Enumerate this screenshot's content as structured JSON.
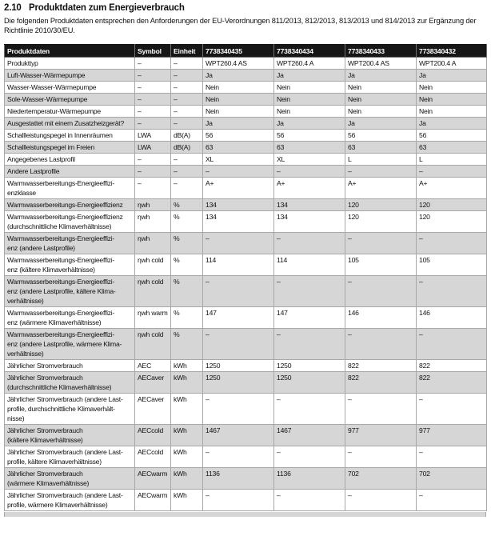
{
  "document": {
    "section_number": "2.10",
    "section_title": "Produktdaten zum Energieverbrauch",
    "intro": "Die folgenden Produktdaten entsprechen den Anforderungen der EU-Verordnungen 811/2013, 812/2013, 813/2013 und 814/2013 zur Ergänzung der Richtlinie 2010/30/EU."
  },
  "colors": {
    "header_bg": "#161616",
    "header_text": "#ffffff",
    "row_alt_bg": "#d6d6d6",
    "grid_line": "#a8a8a8",
    "text": "#111111"
  },
  "table": {
    "headers": [
      "Produktdaten",
      "Symbol",
      "Einheit",
      "7738340435",
      "7738340434",
      "7738340433",
      "7738340432"
    ],
    "rows": [
      {
        "label": "Produkttyp",
        "symbol": "–",
        "unit": "–",
        "values": [
          "WPT260.4 AS",
          "WPT260.4 A",
          "WPT200.4 AS",
          "WPT200.4 A"
        ]
      },
      {
        "label": "Luft-Wasser-Wärmepumpe",
        "symbol": "–",
        "unit": "–",
        "values": [
          "Ja",
          "Ja",
          "Ja",
          "Ja"
        ]
      },
      {
        "label": "Wasser-Wasser-Wärmepumpe",
        "symbol": "–",
        "unit": "–",
        "values": [
          "Nein",
          "Nein",
          "Nein",
          "Nein"
        ]
      },
      {
        "label": "Sole-Wasser-Wärmepumpe",
        "symbol": "–",
        "unit": "–",
        "values": [
          "Nein",
          "Nein",
          "Nein",
          "Nein"
        ]
      },
      {
        "label": "Niedertemperatur-Wärmepumpe",
        "symbol": "–",
        "unit": "–",
        "values": [
          "Nein",
          "Nein",
          "Nein",
          "Nein"
        ]
      },
      {
        "label": "Ausgestattet mit einem Zusatzheizgerät?",
        "symbol": "–",
        "unit": "–",
        "values": [
          "Ja",
          "Ja",
          "Ja",
          "Ja"
        ]
      },
      {
        "label": "Schallleistungspegel in Innenräumen",
        "symbol": "LWA",
        "unit": "dB(A)",
        "values": [
          "56",
          "56",
          "56",
          "56"
        ]
      },
      {
        "label": "Schallleistungspegel im Freien",
        "symbol": "LWA",
        "unit": "dB(A)",
        "values": [
          "63",
          "63",
          "63",
          "63"
        ]
      },
      {
        "label": "Angegebenes Lastprofil",
        "symbol": "–",
        "unit": "–",
        "values": [
          "XL",
          "XL",
          "L",
          "L"
        ]
      },
      {
        "label": "Andere Lastprofile",
        "symbol": "–",
        "unit": "–",
        "values": [
          "–",
          "–",
          "–",
          "–"
        ]
      },
      {
        "label": "Warmwasserbereitungs-Energieeffizi-\nenzklasse",
        "symbol": "–",
        "unit": "–",
        "values": [
          "A+",
          "A+",
          "A+",
          "A+"
        ]
      },
      {
        "label": "Warmwasserbereitungs-Energieeffizienz",
        "symbol": "ηwh",
        "unit": "%",
        "values": [
          "134",
          "134",
          "120",
          "120"
        ]
      },
      {
        "label": "Warmwasserbereitungs-Energieeffizienz\n(durchschnittliche Klimaverhältnisse)",
        "symbol": "ηwh",
        "unit": "%",
        "values": [
          "134",
          "134",
          "120",
          "120"
        ]
      },
      {
        "label": "Warmwasserbereitungs-Energieeffizi-\nenz (andere Lastprofile)",
        "symbol": "ηwh",
        "unit": "%",
        "values": [
          "–",
          "–",
          "–",
          "–"
        ]
      },
      {
        "label": "Warmwasserbereitungs-Energieeffizi-\nenz (kältere Klimaverhältnisse)",
        "symbol": "ηwh cold",
        "unit": "%",
        "values": [
          "114",
          "114",
          "105",
          "105"
        ]
      },
      {
        "label": "Warmwasserbereitungs-Energieeffizi-\nenz (andere Lastprofile, kältere Klima-\nverhältnisse)",
        "symbol": "ηwh cold",
        "unit": "%",
        "values": [
          "–",
          "–",
          "–",
          "–"
        ]
      },
      {
        "label": "Warmwasserbereitungs-Energieeffizi-\nenz (wärmere Klimaverhältnisse)",
        "symbol": "ηwh warm",
        "unit": "%",
        "values": [
          "147",
          "147",
          "146",
          "146"
        ]
      },
      {
        "label": "Warmwasserbereitungs-Energieeffizi-\nenz (andere Lastprofile, wärmere Klima-\nverhältnisse)",
        "symbol": "ηwh cold",
        "unit": "%",
        "values": [
          "–",
          "–",
          "–",
          "–"
        ]
      },
      {
        "label": "Jährlicher Stromverbrauch",
        "symbol": "AEC",
        "unit": "kWh",
        "values": [
          "1250",
          "1250",
          "822",
          "822"
        ]
      },
      {
        "label": "Jährlicher Stromverbrauch\n(durchschnittliche Klimaverhältnisse)",
        "symbol": "AECaver",
        "unit": "kWh",
        "values": [
          "1250",
          "1250",
          "822",
          "822"
        ]
      },
      {
        "label": "Jährlicher Stromverbrauch (andere Last-\nprofile, durchschnittliche Klimaverhält-\nnisse)",
        "symbol": "AECaver",
        "unit": "kWh",
        "values": [
          "–",
          "–",
          "–",
          "–"
        ]
      },
      {
        "label": "Jährlicher Stromverbrauch\n(kältere Klimaverhältnisse)",
        "symbol": "AECcold",
        "unit": "kWh",
        "values": [
          "1467",
          "1467",
          "977",
          "977"
        ]
      },
      {
        "label": "Jährlicher Stromverbrauch (andere Last-\nprofile, kältere Klimaverhältnisse)",
        "symbol": "AECcold",
        "unit": "kWh",
        "values": [
          "–",
          "–",
          "–",
          "–"
        ]
      },
      {
        "label": "Jährlicher Stromverbrauch\n(wärmere Klimaverhältnisse)",
        "symbol": "AECwarm",
        "unit": "kWh",
        "values": [
          "1136",
          "1136",
          "702",
          "702"
        ]
      },
      {
        "label": "Jährlicher Stromverbrauch (andere Last-\nprofile, wärmere Klimaverhältnisse)",
        "symbol": "AECwarm",
        "unit": "kWh",
        "values": [
          "–",
          "–",
          "–",
          "–"
        ]
      }
    ]
  }
}
